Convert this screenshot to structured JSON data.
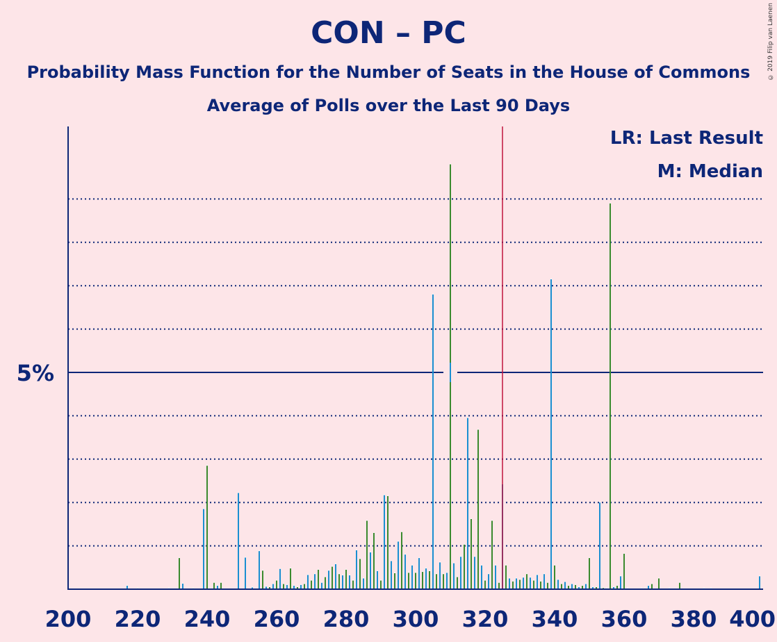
{
  "title": "CON – PC",
  "subtitle_line1": "Probability Mass Function for the Number of Seats in the House of Commons",
  "subtitle_line2": "Average of Polls over the Last 90 Days",
  "legend": {
    "last_result": "LR: Last Result",
    "median": "M: Median"
  },
  "copyright": "© 2019 Filip van Laenen",
  "colors": {
    "background": "#fde5e8",
    "axis": "#0d2677",
    "blue": "#1a8fd1",
    "green": "#3a8a2e",
    "last_result_line": "#c0143c"
  },
  "chart_data": {
    "type": "bar",
    "xlim": [
      200,
      400
    ],
    "ylim": [
      0,
      10.7
    ],
    "xticks": [
      200,
      220,
      240,
      260,
      280,
      300,
      320,
      340,
      360,
      380,
      400
    ],
    "ytick_label": "5%",
    "ytick_value": 5,
    "gridlines": [
      1,
      2,
      3,
      4,
      5,
      6,
      7,
      8,
      9
    ],
    "last_result": 325,
    "median": 310,
    "median_label": "M",
    "last_result_label": "LR",
    "x": [
      217,
      220,
      229,
      232,
      233,
      236,
      239,
      240,
      242,
      243,
      244,
      249,
      251,
      253,
      255,
      256,
      257,
      258,
      259,
      260,
      261,
      262,
      263,
      264,
      265,
      266,
      267,
      268,
      269,
      270,
      271,
      272,
      273,
      274,
      275,
      276,
      277,
      278,
      279,
      280,
      281,
      282,
      283,
      284,
      285,
      286,
      287,
      288,
      289,
      290,
      291,
      292,
      293,
      294,
      295,
      296,
      297,
      298,
      299,
      300,
      301,
      302,
      303,
      304,
      305,
      306,
      307,
      308,
      309,
      310,
      311,
      312,
      313,
      314,
      315,
      316,
      317,
      318,
      319,
      320,
      321,
      322,
      323,
      324,
      325,
      326,
      327,
      328,
      329,
      330,
      331,
      332,
      333,
      334,
      335,
      336,
      337,
      338,
      339,
      340,
      341,
      342,
      343,
      344,
      345,
      346,
      347,
      348,
      349,
      350,
      351,
      352,
      353,
      354,
      355,
      356,
      357,
      358,
      359,
      360,
      361,
      365,
      366,
      367,
      368,
      370,
      373,
      376,
      383,
      385,
      399
    ],
    "values": [
      0.08,
      0.02,
      0.02,
      0.72,
      0.13,
      0.02,
      1.85,
      2.85,
      0.15,
      0.08,
      0.15,
      2.22,
      0.73,
      0.04,
      0.88,
      0.43,
      0.06,
      0.05,
      0.12,
      0.2,
      0.47,
      0.12,
      0.1,
      0.48,
      0.08,
      0.05,
      0.1,
      0.12,
      0.33,
      0.2,
      0.35,
      0.45,
      0.15,
      0.28,
      0.43,
      0.52,
      0.58,
      0.35,
      0.32,
      0.45,
      0.32,
      0.2,
      0.9,
      0.7,
      0.25,
      1.58,
      0.85,
      1.3,
      0.42,
      0.2,
      2.17,
      2.15,
      0.65,
      0.37,
      1.1,
      1.32,
      0.8,
      0.38,
      0.55,
      0.38,
      0.72,
      0.4,
      0.48,
      0.42,
      6.8,
      0.35,
      0.62,
      0.35,
      0.38,
      9.8,
      0.6,
      0.28,
      0.75,
      1.03,
      3.95,
      1.62,
      0.75,
      3.68,
      0.55,
      0.2,
      0.35,
      1.58,
      0.55,
      0.15,
      2.42,
      0.55,
      0.25,
      0.18,
      0.25,
      0.22,
      0.27,
      0.35,
      0.27,
      0.2,
      0.33,
      0.18,
      0.35,
      0.15,
      7.15,
      0.55,
      0.22,
      0.12,
      0.17,
      0.08,
      0.12,
      0.1,
      0.05,
      0.08,
      0.12,
      0.72,
      0.05,
      0.05,
      2.0,
      0.03,
      0.02,
      8.9,
      0.05,
      0.08,
      0.3,
      0.82,
      0.02,
      0.02,
      0.02,
      0.08,
      0.12,
      0.25,
      0.02,
      0.15,
      0.02,
      0.02,
      0.3
    ]
  }
}
